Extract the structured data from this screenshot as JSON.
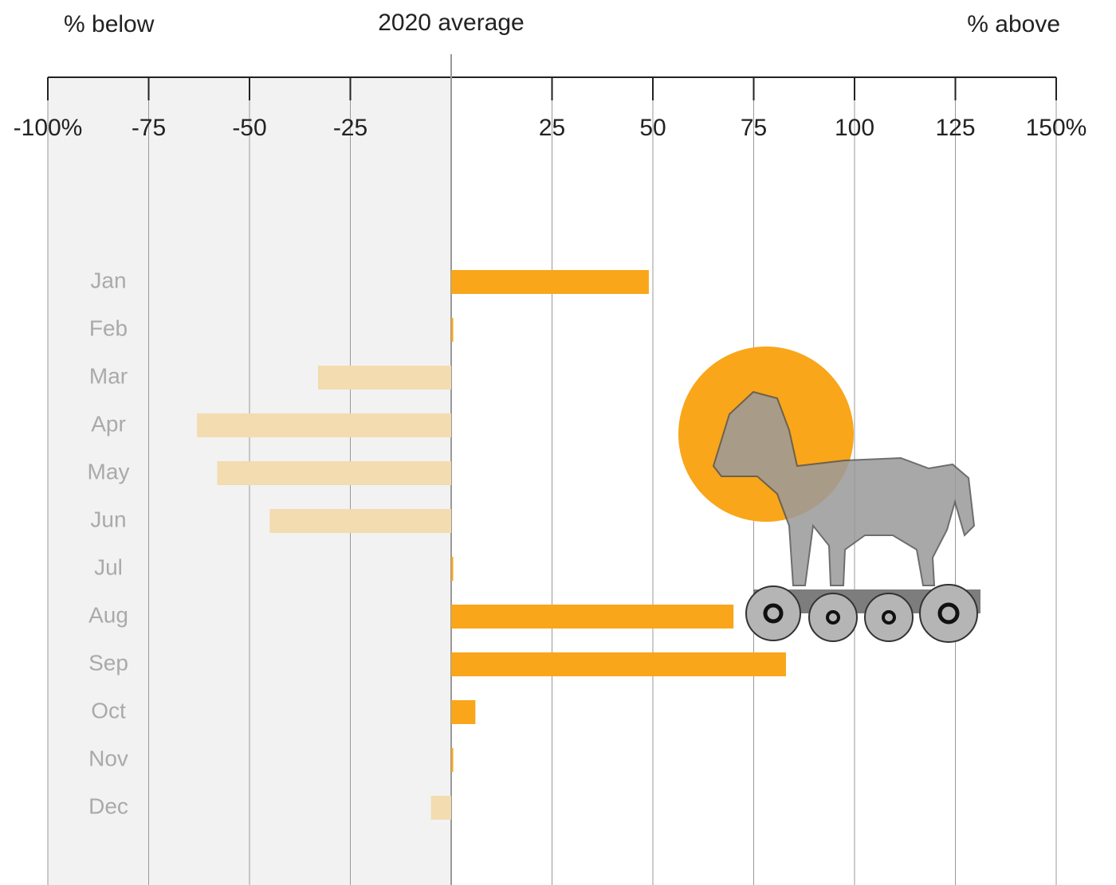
{
  "chart_data": {
    "type": "diverging_bar",
    "header_left": "% below",
    "header_center": "2020 average",
    "header_right": "% above",
    "categories": [
      "Jan",
      "Feb",
      "Mar",
      "Apr",
      "May",
      "Jun",
      "Jul",
      "Aug",
      "Sep",
      "Oct",
      "Nov",
      "Dec"
    ],
    "values": [
      49,
      0.5,
      -33,
      -63,
      -58,
      -45,
      0.5,
      70,
      83,
      6,
      0.5,
      -5
    ],
    "positive_color": "#f9a61a",
    "negative_color": "#f2dcb0",
    "xlim": [
      -100,
      150
    ],
    "xticks": [
      {
        "value": -100,
        "label": "-100%"
      },
      -75,
      -50,
      -25,
      25,
      50,
      75,
      100,
      125,
      {
        "value": 150,
        "label": "150%"
      }
    ],
    "grid": true
  }
}
